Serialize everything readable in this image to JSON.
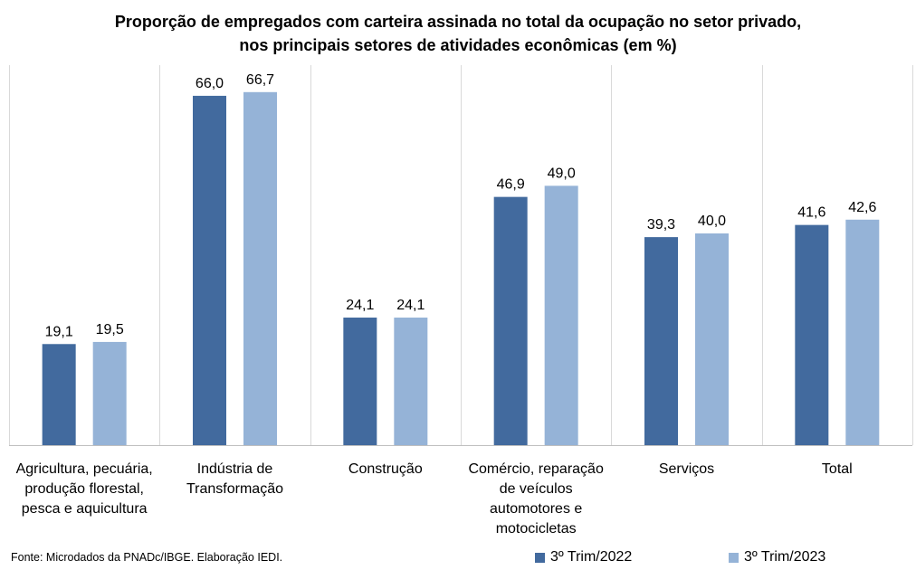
{
  "chart_data": {
    "type": "bar",
    "title_lines": [
      "Proporção de empregados com carteira assinada no total da ocupação no setor privado,",
      "nos principais setores de atividades econômicas (em %)"
    ],
    "categories": [
      [
        "Agricultura, pecuária,",
        "produção florestal,",
        "pesca e aquicultura"
      ],
      [
        "Indústria de",
        "Transformação"
      ],
      [
        "Construção"
      ],
      [
        "Comércio, reparação",
        "de veículos",
        "automotores e",
        "motocicletas"
      ],
      [
        "Serviços"
      ],
      [
        "Total"
      ]
    ],
    "series": [
      {
        "name": "3º Trim/2022",
        "values": [
          19.1,
          66.0,
          24.1,
          46.9,
          39.3,
          41.6
        ],
        "labels": [
          "19,1",
          "66,0",
          "24,1",
          "46,9",
          "39,3",
          "41,6"
        ],
        "color": "#426a9e"
      },
      {
        "name": "3º Trim/2023",
        "values": [
          19.5,
          66.7,
          24.1,
          49.0,
          40.0,
          42.6
        ],
        "labels": [
          "19,5",
          "66,7",
          "24,1",
          "49,0",
          "40,0",
          "42,6"
        ],
        "color": "#95b3d7"
      }
    ],
    "ylim": [
      0,
      75
    ],
    "legend_position": "bottom-right",
    "grid": false
  },
  "footer": {
    "source": "Fonte: Microdados da PNADc/IBGE. Elaboração IEDI."
  }
}
